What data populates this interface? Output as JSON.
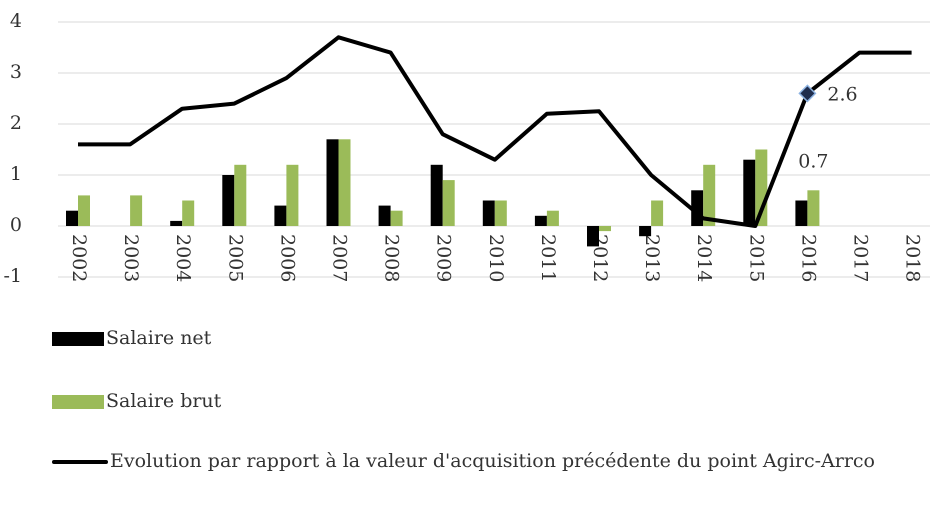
{
  "chart_data": {
    "type": "bar-line",
    "categories": [
      "2002",
      "2003",
      "2004",
      "2005",
      "2006",
      "2007",
      "2008",
      "2009",
      "2010",
      "2011",
      "2012",
      "2013",
      "2014",
      "2015",
      "2016",
      "2017",
      "2018"
    ],
    "series": [
      {
        "name": "Salaire net",
        "type": "bar",
        "color": "#000000",
        "values": [
          0.3,
          null,
          0.1,
          1.0,
          0.4,
          1.7,
          0.4,
          1.2,
          0.5,
          0.2,
          -0.4,
          -0.2,
          0.7,
          1.3,
          0.5,
          null,
          null
        ]
      },
      {
        "name": "Salaire brut",
        "type": "bar",
        "color": "#9bbb59",
        "values": [
          0.6,
          0.6,
          0.5,
          1.2,
          1.2,
          1.7,
          0.3,
          0.9,
          0.5,
          0.3,
          -0.1,
          0.5,
          1.2,
          1.5,
          0.7,
          null,
          null
        ],
        "value_labels": [
          null,
          null,
          null,
          null,
          null,
          null,
          null,
          null,
          null,
          null,
          null,
          null,
          null,
          null,
          "0.7",
          null,
          null
        ]
      },
      {
        "name": "Evolution par rapport à la valeur d'acquisition précédente du point Agirc-Arrco",
        "type": "line",
        "color": "#000000",
        "values": [
          1.6,
          1.6,
          2.3,
          2.4,
          2.9,
          3.7,
          3.4,
          1.8,
          1.3,
          2.2,
          2.25,
          1.0,
          0.15,
          0.0,
          2.6,
          3.4,
          3.4
        ],
        "value_labels": [
          null,
          null,
          null,
          null,
          null,
          null,
          null,
          null,
          null,
          null,
          null,
          null,
          null,
          null,
          "2.6",
          null,
          null
        ]
      }
    ],
    "ylim": [
      -1,
      4
    ],
    "yticks": [
      -1,
      0,
      1,
      2,
      3,
      4
    ],
    "grid": true,
    "legend": "bottom"
  }
}
